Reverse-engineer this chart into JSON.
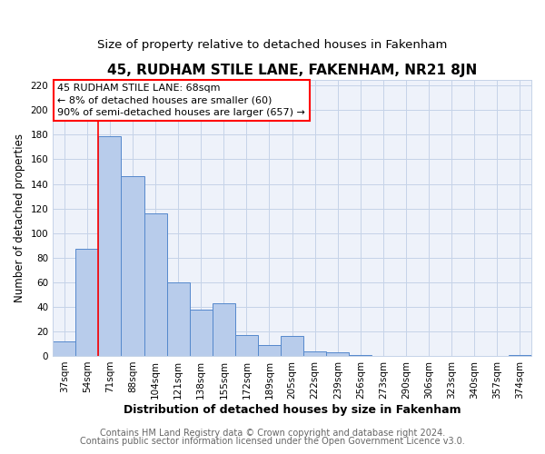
{
  "title": "45, RUDHAM STILE LANE, FAKENHAM, NR21 8JN",
  "subtitle": "Size of property relative to detached houses in Fakenham",
  "xlabel": "Distribution of detached houses by size in Fakenham",
  "ylabel": "Number of detached properties",
  "bin_labels": [
    "37sqm",
    "54sqm",
    "71sqm",
    "88sqm",
    "104sqm",
    "121sqm",
    "138sqm",
    "155sqm",
    "172sqm",
    "189sqm",
    "205sqm",
    "222sqm",
    "239sqm",
    "256sqm",
    "273sqm",
    "290sqm",
    "306sqm",
    "323sqm",
    "340sqm",
    "357sqm",
    "374sqm"
  ],
  "bar_values": [
    12,
    87,
    179,
    146,
    116,
    60,
    38,
    43,
    17,
    9,
    16,
    4,
    3,
    1,
    0,
    0,
    0,
    0,
    0,
    0,
    1
  ],
  "bar_color": "#b8cceb",
  "bar_edge_color": "#5588cc",
  "red_line_index": 2,
  "annotation_lines": [
    "45 RUDHAM STILE LANE: 68sqm",
    "← 8% of detached houses are smaller (60)",
    "90% of semi-detached houses are larger (657) →"
  ],
  "ylim_max": 225,
  "yticks": [
    0,
    20,
    40,
    60,
    80,
    100,
    120,
    140,
    160,
    180,
    200,
    220
  ],
  "footer_line1": "Contains HM Land Registry data © Crown copyright and database right 2024.",
  "footer_line2": "Contains public sector information licensed under the Open Government Licence v3.0.",
  "bg_color": "#eef2fa",
  "grid_color": "#c5d3e8",
  "title_fontsize": 11,
  "subtitle_fontsize": 9.5,
  "xlabel_fontsize": 9,
  "ylabel_fontsize": 8.5,
  "tick_fontsize": 7.5,
  "footer_fontsize": 7,
  "ann_fontsize": 8
}
